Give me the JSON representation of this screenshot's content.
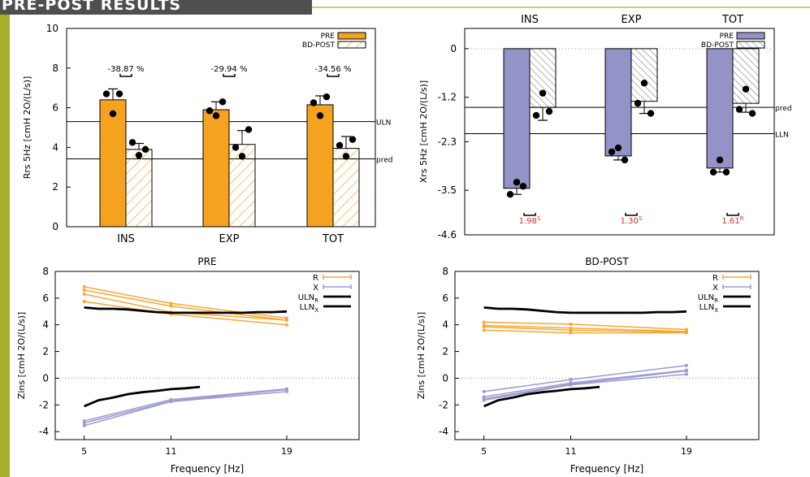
{
  "header": {
    "title": "PRE-POST RESULTS"
  },
  "colors": {
    "frame": "#a8ad2d",
    "title_bg": "#4f4f4f",
    "pre_rrs": "#f4a21f",
    "pre_xrs": "#9393c8",
    "diff_text": "#d6322b",
    "r_line": "#f6a836",
    "x_line": "#9b9bd3",
    "limit_line": "#000000"
  },
  "chart_data": [
    {
      "id": "rrs",
      "type": "bar",
      "categories": [
        "INS",
        "EXP",
        "TOT"
      ],
      "series": [
        {
          "name": "PRE",
          "values": [
            6.4,
            5.9,
            6.15
          ],
          "err": [
            0.55,
            0.4,
            0.45
          ],
          "points": [
            [
              6.7,
              5.7,
              6.7
            ],
            [
              5.85,
              5.6,
              6.3
            ],
            [
              6.25,
              5.6,
              6.55
            ]
          ]
        },
        {
          "name": "BD-POST",
          "values": [
            3.9,
            4.15,
            3.95
          ],
          "err": [
            0.3,
            0.7,
            0.6
          ],
          "points": [
            [
              4.25,
              3.6,
              3.9
            ],
            [
              4.0,
              3.55,
              4.9
            ],
            [
              4.1,
              3.55,
              4.4
            ]
          ]
        }
      ],
      "ylabel": "Rrs 5Hz [cmH 2O/(L/s)]",
      "ylim": [
        0,
        10
      ],
      "yticks": [
        "0",
        "2",
        "4",
        "6",
        "8",
        "10"
      ],
      "ref_lines": [
        {
          "label": "ULN",
          "value": 5.3
        },
        {
          "label": "pred",
          "value": 3.42
        }
      ],
      "diffs": [
        "-38.87 %",
        "-29.94 %",
        "-34.56 %"
      ],
      "legend": "top-right"
    },
    {
      "id": "xrs",
      "type": "bar",
      "categories": [
        "INS",
        "EXP",
        "TOT"
      ],
      "series": [
        {
          "name": "PRE",
          "values": [
            -3.45,
            -2.65,
            -2.95
          ],
          "err": [
            0.15,
            0.1,
            0.1
          ],
          "points": [
            [
              -3.6,
              -3.3,
              -3.4
            ],
            [
              -2.55,
              -2.45,
              -2.75
            ],
            [
              -3.05,
              -2.75,
              -3.05
            ]
          ]
        },
        {
          "name": "BD-POST",
          "values": [
            -1.45,
            -1.3,
            -1.35
          ],
          "err": [
            0.32,
            0.3,
            0.22
          ],
          "points": [
            [
              -1.65,
              -1.1,
              -1.55
            ],
            [
              -1.35,
              -0.85,
              -1.6
            ],
            [
              -1.5,
              -1.0,
              -1.6
            ]
          ]
        }
      ],
      "ylabel": "Xrs 5Hz [cmH 2O/(L/s)]",
      "ylim": [
        -4.6,
        0.5
      ],
      "yticks": [
        "0",
        "-1.2",
        "-2.3",
        "-3.5",
        "-4.6"
      ],
      "ytick_values": [
        0,
        -1.2,
        -2.3,
        -3.5,
        -4.6
      ],
      "ref_lines": [
        {
          "label": "pred",
          "value": -1.45
        },
        {
          "label": "LLN",
          "value": -2.1
        }
      ],
      "diffs": [
        {
          "value": "1.98",
          "sup": "S"
        },
        {
          "value": "1.30",
          "sup": "S"
        },
        {
          "value": "1.61",
          "sup": "R"
        }
      ],
      "legend": "top-right"
    },
    {
      "id": "zins_pre",
      "type": "line",
      "title": "PRE",
      "xlabel": "Frequency [Hz]",
      "ylabel": "Zins [cmH 2O/(L/s)]",
      "xlim": [
        3,
        24
      ],
      "ylim": [
        -4.6,
        8
      ],
      "xticks": [
        5,
        11,
        19
      ],
      "yticks": [
        -4,
        -2,
        0,
        2,
        4,
        6,
        8
      ],
      "series": [
        {
          "name": "R",
          "kind": "R",
          "lines": [
            [
              6.85,
              5.6,
              4.5
            ],
            [
              6.6,
              5.4,
              4.35
            ],
            [
              6.3,
              4.95,
              4.35
            ],
            [
              5.75,
              4.8,
              4.0
            ]
          ]
        },
        {
          "name": "X",
          "kind": "X",
          "lines": [
            [
              -3.2,
              -1.6,
              -0.8
            ],
            [
              -3.35,
              -1.7,
              -0.85
            ],
            [
              -3.55,
              -1.75,
              -1.0
            ]
          ]
        },
        {
          "name": "ULN",
          "sub": "R",
          "kind": "ULN",
          "x": [
            5,
            6,
            7,
            8,
            9,
            10,
            11,
            12,
            13,
            14,
            15,
            16,
            17,
            18,
            19
          ],
          "y": [
            5.3,
            5.2,
            5.2,
            5.15,
            5.05,
            4.95,
            4.9,
            4.9,
            4.9,
            4.9,
            4.9,
            4.9,
            4.95,
            4.95,
            5.0
          ]
        },
        {
          "name": "LLN",
          "sub": "X",
          "kind": "LLN",
          "x": [
            5,
            6,
            7,
            8,
            9,
            10,
            11,
            12,
            13
          ],
          "y": [
            -2.1,
            -1.65,
            -1.45,
            -1.2,
            -1.05,
            -0.95,
            -0.82,
            -0.75,
            -0.65
          ]
        }
      ],
      "legend": "top-right"
    },
    {
      "id": "zins_post",
      "type": "line",
      "title": "BD-POST",
      "xlabel": "Frequency [Hz]",
      "ylabel": "Zins [cmH 2O/(L/s)]",
      "xlim": [
        3,
        24
      ],
      "ylim": [
        -4.6,
        8
      ],
      "xticks": [
        5,
        11,
        19
      ],
      "yticks": [
        -4,
        -2,
        0,
        2,
        4,
        6,
        8
      ],
      "series": [
        {
          "name": "R",
          "kind": "R",
          "lines": [
            [
              4.2,
              4.05,
              3.65
            ],
            [
              3.95,
              3.75,
              3.5
            ],
            [
              3.85,
              3.6,
              3.45
            ],
            [
              3.6,
              3.4,
              3.4
            ]
          ]
        },
        {
          "name": "X",
          "kind": "X",
          "lines": [
            [
              -1.0,
              -0.1,
              0.95
            ],
            [
              -1.4,
              -0.35,
              0.6
            ],
            [
              -1.55,
              -0.45,
              0.55
            ],
            [
              -1.65,
              -0.5,
              0.3
            ]
          ]
        },
        {
          "name": "ULN",
          "sub": "R",
          "kind": "ULN",
          "x": [
            5,
            6,
            7,
            8,
            9,
            10,
            11,
            12,
            13,
            14,
            15,
            16,
            17,
            18,
            19
          ],
          "y": [
            5.3,
            5.2,
            5.2,
            5.15,
            5.05,
            4.95,
            4.9,
            4.9,
            4.9,
            4.9,
            4.9,
            4.9,
            4.95,
            4.95,
            5.0
          ]
        },
        {
          "name": "LLN",
          "sub": "X",
          "kind": "LLN",
          "x": [
            5,
            6,
            7,
            8,
            9,
            10,
            11,
            12,
            13
          ],
          "y": [
            -2.1,
            -1.65,
            -1.45,
            -1.2,
            -1.05,
            -0.95,
            -0.82,
            -0.75,
            -0.65
          ]
        }
      ],
      "legend": "top-right"
    }
  ]
}
